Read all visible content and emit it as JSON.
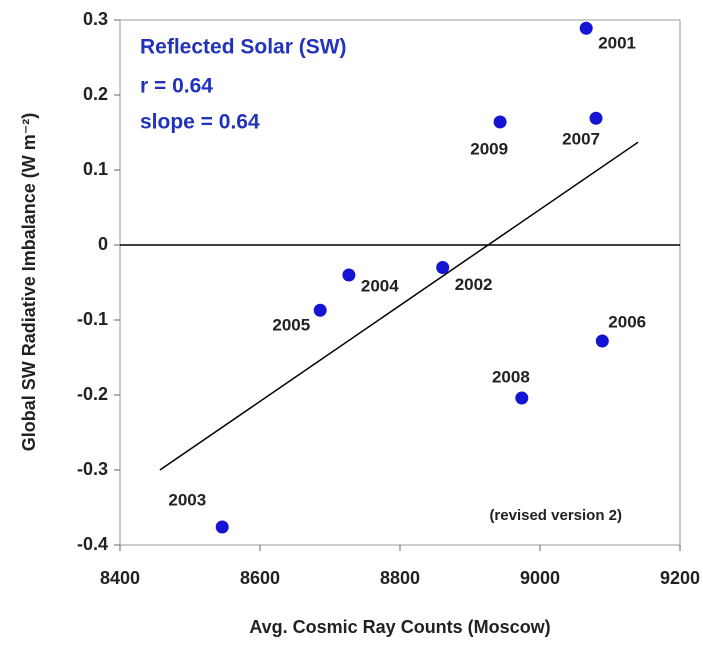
{
  "chart_data": {
    "type": "scatter",
    "x_label": "Avg. Cosmic Ray Counts (Moscow)",
    "y_label": "Global SW Radiative Imbalance (W m⁻²)",
    "annotations": [
      "Reflected Solar (SW)",
      "r = 0.64",
      "slope = 0.64"
    ],
    "note": "(revised version 2)",
    "color": "#1414d2",
    "labels": [
      "2001",
      "2009",
      "2007",
      "2004",
      "2002",
      "2005",
      "2006",
      "2008",
      "2003"
    ],
    "x": [
      9066,
      8943,
      9080,
      8727,
      8861,
      8686,
      9089,
      8974,
      8546
    ],
    "y": [
      0.289,
      0.164,
      0.169,
      -0.04,
      -0.03,
      -0.087,
      -0.128,
      -0.204,
      -0.376
    ],
    "trend_line": {
      "x": [
        8457,
        9140
      ],
      "y": [
        -0.3,
        0.137
      ]
    },
    "xlim": [
      8400,
      9200
    ],
    "ylim": [
      -0.4,
      0.3
    ],
    "xticks": [
      8400,
      8600,
      8800,
      9000,
      9200
    ],
    "yticks": [
      0.3,
      0.2,
      0.1,
      0,
      -0.1,
      -0.2,
      -0.3,
      -0.4
    ]
  }
}
